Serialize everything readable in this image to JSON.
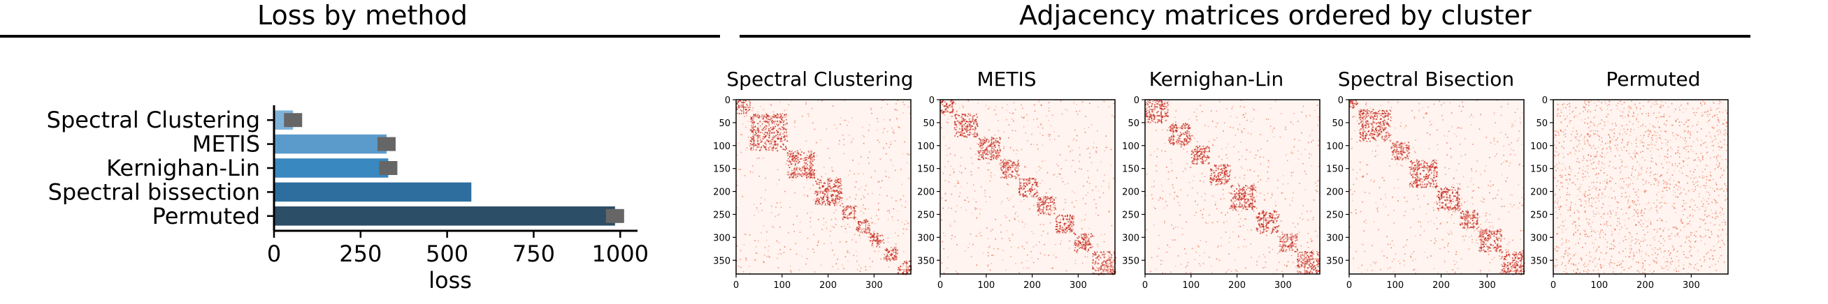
{
  "left_panel": {
    "title": "Loss by method"
  },
  "right_panel": {
    "title": "Adjacency matrices ordered by cluster"
  },
  "chart_data": [
    {
      "type": "bar",
      "orientation": "horizontal",
      "categories": [
        "Spectral Clustering",
        "METIS",
        "Kernighan-Lin",
        "Spectral bissection",
        "Permuted"
      ],
      "values": [
        55,
        325,
        330,
        570,
        985
      ],
      "error_values": [
        55,
        325,
        330,
        null,
        985
      ],
      "xlabel": "loss",
      "xlim": [
        0,
        1050
      ],
      "xticks": [
        "0",
        "250",
        "500",
        "750",
        "1000"
      ],
      "colors": [
        "#7fb2d8",
        "#5b9bcc",
        "#3a88c0",
        "#2e6e9e",
        "#2c4e66"
      ],
      "error_color": "#666666"
    },
    {
      "type": "heatmap",
      "title": "Spectral Clustering",
      "x_ticks": [
        "0",
        "100",
        "200",
        "300"
      ],
      "y_ticks": [
        "0",
        "50",
        "100",
        "150",
        "200",
        "250",
        "300",
        "350"
      ],
      "n": 380,
      "blocks": [
        [
          0,
          30
        ],
        [
          30,
          110
        ],
        [
          110,
          170
        ],
        [
          170,
          230
        ],
        [
          230,
          260
        ],
        [
          260,
          290
        ],
        [
          290,
          320
        ],
        [
          320,
          350
        ],
        [
          350,
          380
        ]
      ]
    },
    {
      "type": "heatmap",
      "title": "METIS",
      "x_ticks": [
        "0",
        "100",
        "200",
        "300"
      ],
      "y_ticks": [
        "0",
        "50",
        "100",
        "150",
        "200",
        "250",
        "300",
        "350"
      ],
      "n": 380,
      "blocks": [
        [
          0,
          30
        ],
        [
          30,
          80
        ],
        [
          80,
          130
        ],
        [
          130,
          170
        ],
        [
          170,
          210
        ],
        [
          210,
          250
        ],
        [
          250,
          290
        ],
        [
          290,
          330
        ],
        [
          330,
          380
        ]
      ]
    },
    {
      "type": "heatmap",
      "title": "Kernighan-Lin",
      "x_ticks": [
        "0",
        "100",
        "200",
        "300"
      ],
      "y_ticks": [
        "0",
        "50",
        "100",
        "150",
        "200",
        "250",
        "300",
        "350"
      ],
      "n": 380,
      "blocks": [
        [
          0,
          50
        ],
        [
          50,
          100
        ],
        [
          100,
          140
        ],
        [
          140,
          185
        ],
        [
          185,
          240
        ],
        [
          240,
          290
        ],
        [
          290,
          330
        ],
        [
          330,
          380
        ]
      ]
    },
    {
      "type": "heatmap",
      "title": "Spectral Bisection",
      "x_ticks": [
        "0",
        "100",
        "200",
        "300"
      ],
      "y_ticks": [
        "0",
        "50",
        "100",
        "150",
        "200",
        "250",
        "300",
        "350"
      ],
      "n": 380,
      "blocks": [
        [
          0,
          20
        ],
        [
          20,
          90
        ],
        [
          90,
          130
        ],
        [
          130,
          190
        ],
        [
          190,
          240
        ],
        [
          240,
          280
        ],
        [
          280,
          330
        ],
        [
          330,
          380
        ]
      ]
    },
    {
      "type": "heatmap",
      "title": "Permuted",
      "x_ticks": [
        "0",
        "100",
        "200",
        "300"
      ],
      "y_ticks": [
        "0",
        "50",
        "100",
        "150",
        "200",
        "250",
        "300",
        "350"
      ],
      "n": 380,
      "blocks": []
    }
  ]
}
